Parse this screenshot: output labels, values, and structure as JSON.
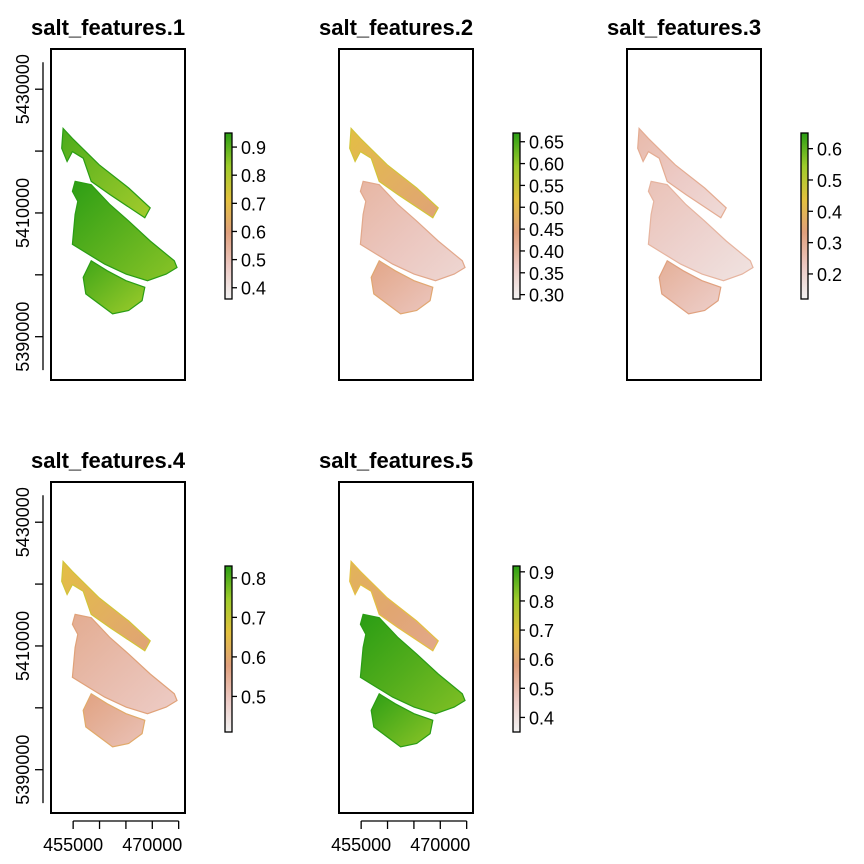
{
  "chart_data": {
    "type": "heatmap",
    "layout": "2x3 grid of raster map panels, legend to the right of each panel",
    "shared_x_ticks": [
      "455000",
      "470000"
    ],
    "shared_y_ticks": [
      "5430000",
      "5410000",
      "5390000"
    ],
    "colors": {
      "scale": [
        "#F2F2F2",
        "#ECC8C2",
        "#E0A07D",
        "#E3C13E",
        "#9ECC2B",
        "#2A9D14"
      ],
      "frame": "#000000"
    },
    "panels": [
      {
        "title": "salt_features.1",
        "legend_ticks": [
          "0.9",
          "0.8",
          "0.7",
          "0.6",
          "0.5",
          "0.4"
        ],
        "legend_range": [
          0.36,
          0.95
        ],
        "region_levels": {
          "strip": 0.87,
          "main": 0.9,
          "lower": 0.88
        },
        "show_y_axis": true,
        "show_x_axis": false
      },
      {
        "title": "salt_features.2",
        "legend_ticks": [
          "0.65",
          "0.60",
          "0.55",
          "0.50",
          "0.45",
          "0.40",
          "0.35",
          "0.30"
        ],
        "legend_range": [
          0.29,
          0.67
        ],
        "region_levels": {
          "strip": 0.48,
          "main": 0.37,
          "lower": 0.4
        },
        "show_y_axis": false,
        "show_x_axis": false
      },
      {
        "title": "salt_features.3",
        "legend_ticks": [
          "0.6",
          "0.5",
          "0.4",
          "0.3",
          "0.2"
        ],
        "legend_range": [
          0.12,
          0.65
        ],
        "region_levels": {
          "strip": 0.22,
          "main": 0.2,
          "lower": 0.25
        },
        "show_y_axis": false,
        "show_x_axis": false
      },
      {
        "title": "salt_features.4",
        "legend_ticks": [
          "0.8",
          "0.7",
          "0.6",
          "0.5"
        ],
        "legend_range": [
          0.41,
          0.83
        ],
        "region_levels": {
          "strip": 0.62,
          "main": 0.52,
          "lower": 0.54
        },
        "show_y_axis": true,
        "show_x_axis": true
      },
      {
        "title": "salt_features.5",
        "legend_ticks": [
          "0.9",
          "0.8",
          "0.7",
          "0.6",
          "0.5",
          "0.4"
        ],
        "legend_range": [
          0.35,
          0.92
        ],
        "region_levels": {
          "strip": 0.6,
          "main": 0.88,
          "lower": 0.87
        },
        "show_y_axis": false,
        "show_x_axis": true
      }
    ]
  }
}
